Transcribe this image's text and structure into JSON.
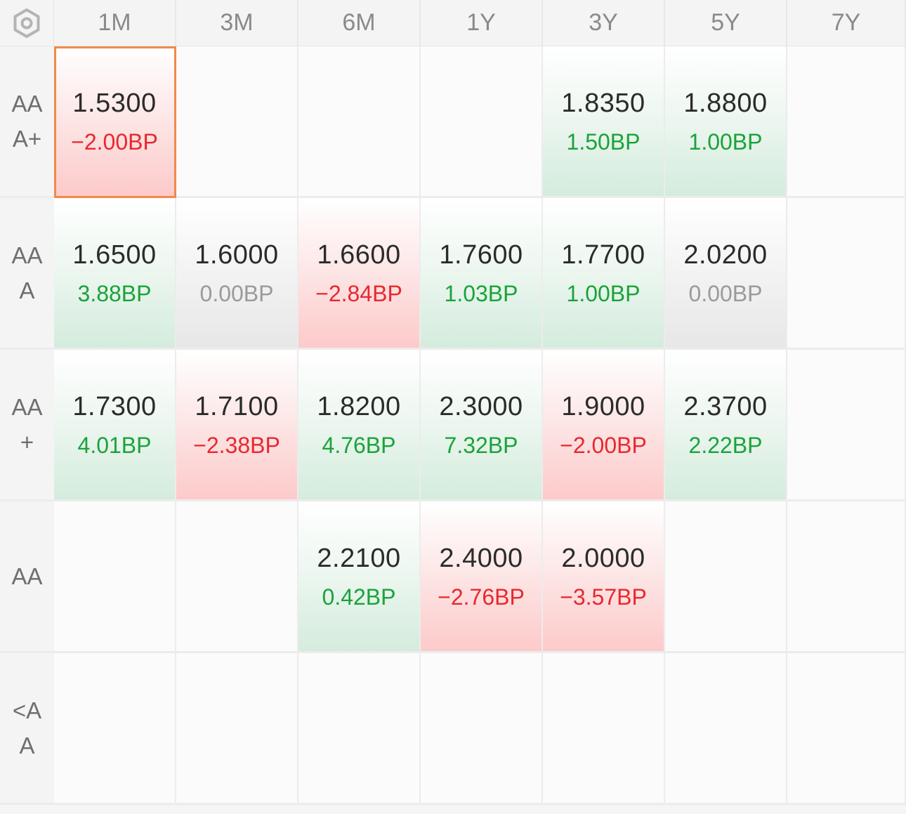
{
  "corner_icon": "hexagon-settings-icon",
  "columns": [
    "1M",
    "3M",
    "6M",
    "1Y",
    "3Y",
    "5Y",
    "7Y"
  ],
  "colors": {
    "up": "#1aa33a",
    "down": "#e8282f",
    "flat": "#9a9a9a",
    "selected_border": "#f08a4b"
  },
  "rows": [
    {
      "label": "AAA+",
      "cells": [
        {
          "value": "1.5300",
          "change": "−2.00BP",
          "trend": "down",
          "selected": true
        },
        null,
        null,
        null,
        {
          "value": "1.8350",
          "change": "1.50BP",
          "trend": "up"
        },
        {
          "value": "1.8800",
          "change": "1.00BP",
          "trend": "up"
        },
        null
      ]
    },
    {
      "label": "AAA",
      "cells": [
        {
          "value": "1.6500",
          "change": "3.88BP",
          "trend": "up"
        },
        {
          "value": "1.6000",
          "change": "0.00BP",
          "trend": "flat"
        },
        {
          "value": "1.6600",
          "change": "−2.84BP",
          "trend": "down"
        },
        {
          "value": "1.7600",
          "change": "1.03BP",
          "trend": "up"
        },
        {
          "value": "1.7700",
          "change": "1.00BP",
          "trend": "up"
        },
        {
          "value": "2.0200",
          "change": "0.00BP",
          "trend": "flat"
        },
        null
      ]
    },
    {
      "label": "AA+",
      "cells": [
        {
          "value": "1.7300",
          "change": "4.01BP",
          "trend": "up"
        },
        {
          "value": "1.7100",
          "change": "−2.38BP",
          "trend": "down"
        },
        {
          "value": "1.8200",
          "change": "4.76BP",
          "trend": "up"
        },
        {
          "value": "2.3000",
          "change": "7.32BP",
          "trend": "up"
        },
        {
          "value": "1.9000",
          "change": "−2.00BP",
          "trend": "down"
        },
        {
          "value": "2.3700",
          "change": "2.22BP",
          "trend": "up"
        },
        null
      ]
    },
    {
      "label": "AA",
      "cells": [
        null,
        null,
        {
          "value": "2.2100",
          "change": "0.42BP",
          "trend": "up"
        },
        {
          "value": "2.4000",
          "change": "−2.76BP",
          "trend": "down"
        },
        {
          "value": "2.0000",
          "change": "−3.57BP",
          "trend": "down"
        },
        null,
        null
      ]
    },
    {
      "label": "<AA",
      "cells": [
        null,
        null,
        null,
        null,
        null,
        null,
        null
      ]
    }
  ]
}
